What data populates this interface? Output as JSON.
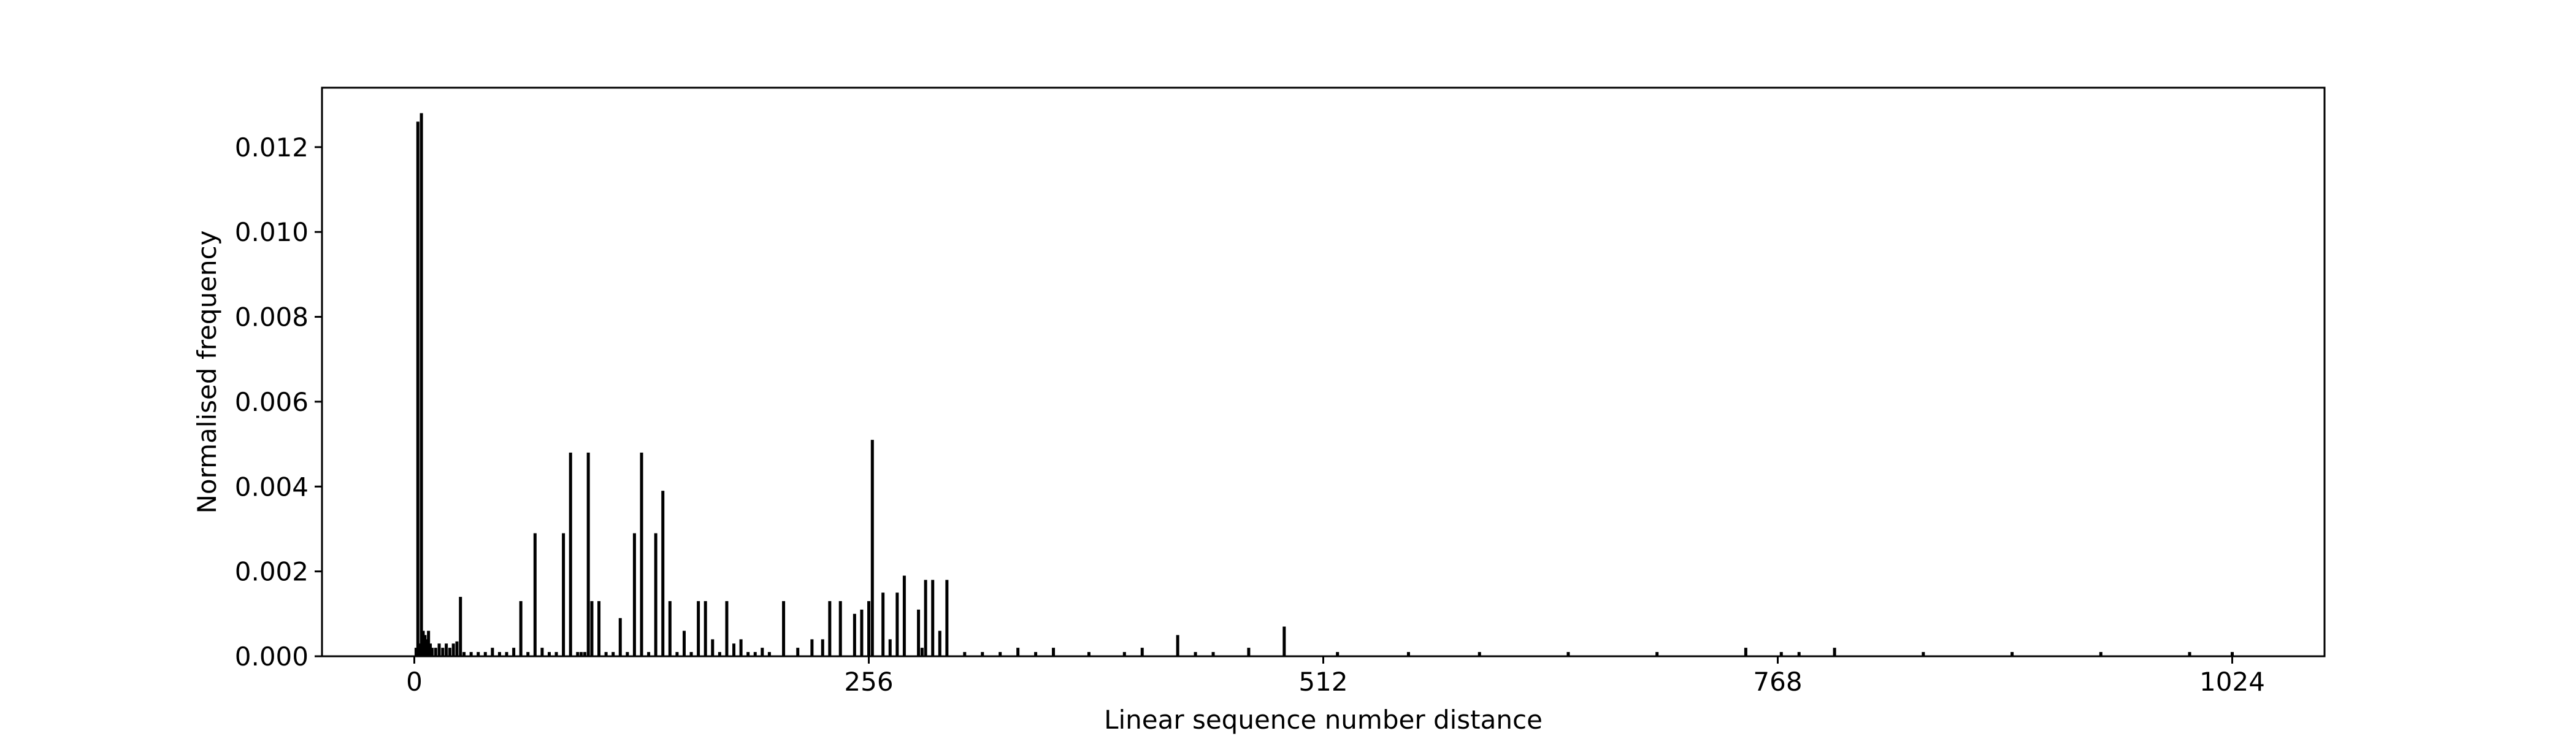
{
  "chart_data": {
    "type": "bar",
    "title": "",
    "xlabel": "Linear sequence number distance",
    "ylabel": "Normalised frequency",
    "xlim": [
      -52,
      1076
    ],
    "ylim": [
      0,
      0.0134
    ],
    "grid": false,
    "legend": "none",
    "bar_color": "#000000",
    "xticks": [
      0,
      256,
      512,
      768,
      1024
    ],
    "xtick_labels": [
      "0",
      "256",
      "512",
      "768",
      "1024"
    ],
    "yticks": [
      0,
      0.002,
      0.004,
      0.006,
      0.008,
      0.01,
      0.012
    ],
    "ytick_labels": [
      "0.000",
      "0.002",
      "0.004",
      "0.006",
      "0.008",
      "0.010",
      "0.012"
    ],
    "x": [
      1,
      2,
      3,
      4,
      5,
      6,
      7,
      8,
      9,
      10,
      12,
      14,
      16,
      18,
      20,
      22,
      24,
      26,
      28,
      32,
      36,
      40,
      44,
      48,
      52,
      56,
      60,
      64,
      68,
      72,
      76,
      80,
      84,
      88,
      92,
      94,
      96,
      98,
      100,
      104,
      108,
      112,
      116,
      120,
      124,
      128,
      132,
      136,
      140,
      144,
      148,
      152,
      156,
      160,
      164,
      168,
      172,
      176,
      180,
      184,
      188,
      192,
      196,
      200,
      208,
      216,
      224,
      230,
      234,
      240,
      248,
      252,
      256,
      258,
      264,
      268,
      272,
      276,
      284,
      286,
      288,
      292,
      296,
      300,
      310,
      320,
      330,
      340,
      350,
      360,
      380,
      400,
      410,
      430,
      440,
      450,
      470,
      490,
      520,
      560,
      600,
      650,
      700,
      750,
      770,
      780,
      800,
      850,
      900,
      950,
      1000,
      1024
    ],
    "values": [
      0.0002,
      0.0126,
      0.0003,
      0.0128,
      0.0006,
      0.0005,
      0.0004,
      0.0006,
      0.0003,
      0.0002,
      0.0002,
      0.0003,
      0.0002,
      0.0003,
      0.0002,
      0.0003,
      0.00035,
      0.0014,
      0.0001,
      0.0001,
      0.0001,
      0.0001,
      0.0002,
      0.0001,
      0.0001,
      0.0002,
      0.0013,
      0.0001,
      0.0029,
      0.0002,
      0.0001,
      0.0001,
      0.0029,
      0.0048,
      0.0001,
      0.0001,
      0.0001,
      0.0048,
      0.0013,
      0.0013,
      0.0001,
      0.0001,
      0.0009,
      0.0001,
      0.0029,
      0.0048,
      0.0001,
      0.0029,
      0.0039,
      0.0013,
      0.0001,
      0.0006,
      0.0001,
      0.0013,
      0.0013,
      0.0004,
      0.0001,
      0.0013,
      0.0003,
      0.0004,
      0.0001,
      0.0001,
      0.0002,
      0.0001,
      0.0013,
      0.0002,
      0.0004,
      0.0004,
      0.0013,
      0.0013,
      0.001,
      0.0011,
      0.0013,
      0.0051,
      0.0015,
      0.0004,
      0.0015,
      0.0019,
      0.0011,
      0.0002,
      0.0018,
      0.0018,
      0.0006,
      0.0018,
      0.0001,
      0.0001,
      0.0001,
      0.0002,
      0.0001,
      0.0002,
      0.0001,
      0.0001,
      0.0002,
      0.0005,
      0.0001,
      0.0001,
      0.0002,
      0.0007,
      0.0001,
      0.0001,
      0.0001,
      0.0001,
      0.0001,
      0.0002,
      0.0001,
      0.0001,
      0.0002,
      0.0001,
      0.0001,
      0.0001,
      0.0001,
      0.0001
    ]
  }
}
